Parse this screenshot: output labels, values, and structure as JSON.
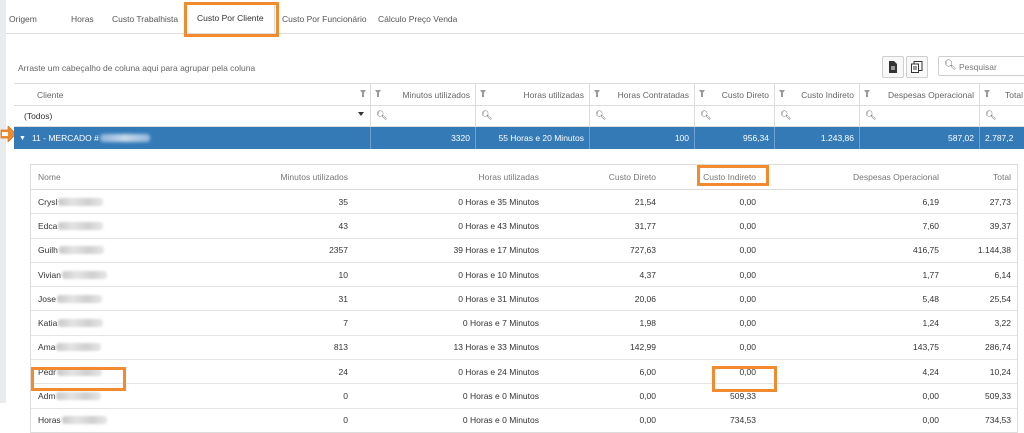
{
  "tabs": [
    {
      "label": "Origem"
    },
    {
      "label": "Horas"
    },
    {
      "label": "Custo Trabalhista"
    },
    {
      "label": "Custo Por Cliente",
      "active": true
    },
    {
      "label": "Custo Por Funcionário"
    },
    {
      "label": "Cálculo Preço Venda"
    }
  ],
  "hint": "Arraste um cabeçalho de coluna aqui para agrupar pela coluna",
  "toolbar": {
    "export_icon": "file-export-icon",
    "columns_icon": "column-chooser-icon",
    "search_placeholder": "Pesquisar"
  },
  "main_grid": {
    "columns": [
      "Cliente",
      "Minutos utilizados",
      "Horas utilizadas",
      "Horas Contratadas",
      "Custo Direto",
      "Custo Indireto",
      "Despesas Operacional",
      "Total"
    ],
    "filter_select": "(Todos)",
    "group_row": {
      "cliente": "11 - MERCADO #",
      "minutos": "3320",
      "horas": "55 Horas e 20 Minutos",
      "contratadas": "100",
      "custo_direto": "956,34",
      "custo_indireto": "1.243,86",
      "despesas": "587,02",
      "total": "2.787,2"
    }
  },
  "detail_grid": {
    "columns": [
      "Nome",
      "Minutos utilizados",
      "Horas utilizadas",
      "Custo Direto",
      "Custo Indireto",
      "Despesas Operacional",
      "Total"
    ],
    "rows": [
      {
        "nome": "Crysl",
        "minutos": "35",
        "horas": "0 Horas e 35 Minutos",
        "custo_direto": "21,54",
        "custo_indireto": "0,00",
        "despesas": "6,19",
        "total": "27,73"
      },
      {
        "nome": "Edca",
        "minutos": "43",
        "horas": "0 Horas e 43 Minutos",
        "custo_direto": "31,77",
        "custo_indireto": "0,00",
        "despesas": "7,60",
        "total": "39,37"
      },
      {
        "nome": "Guilh",
        "minutos": "2357",
        "horas": "39 Horas e 17 Minutos",
        "custo_direto": "727,63",
        "custo_indireto": "0,00",
        "despesas": "416,75",
        "total": "1.144,38"
      },
      {
        "nome": "Vivian",
        "minutos": "10",
        "horas": "0 Horas e 10 Minutos",
        "custo_direto": "4,37",
        "custo_indireto": "0,00",
        "despesas": "1,77",
        "total": "6,14"
      },
      {
        "nome": "Jose",
        "minutos": "31",
        "horas": "0 Horas e 31 Minutos",
        "custo_direto": "20,06",
        "custo_indireto": "0,00",
        "despesas": "5,48",
        "total": "25,54"
      },
      {
        "nome": "Katia",
        "minutos": "7",
        "horas": "0 Horas e 7 Minutos",
        "custo_direto": "1,98",
        "custo_indireto": "0,00",
        "despesas": "1,24",
        "total": "3,22"
      },
      {
        "nome": "Ama",
        "minutos": "813",
        "horas": "13 Horas e 33 Minutos",
        "custo_direto": "142,99",
        "custo_indireto": "0,00",
        "despesas": "143,75",
        "total": "286,74"
      },
      {
        "nome": "Pedr",
        "minutos": "24",
        "horas": "0 Horas e 24 Minutos",
        "custo_direto": "6,00",
        "custo_indireto": "0,00",
        "despesas": "4,24",
        "total": "10,24"
      },
      {
        "nome": "Adm",
        "minutos": "0",
        "horas": "0 Horas e 0 Minutos",
        "custo_direto": "0,00",
        "custo_indireto": "509,33",
        "despesas": "0,00",
        "total": "509,33"
      },
      {
        "nome": "Horas",
        "minutos": "0",
        "horas": "0 Horas e 0 Minutos",
        "custo_direto": "0,00",
        "custo_indireto": "734,53",
        "despesas": "0,00",
        "total": "734,53"
      }
    ]
  },
  "colors": {
    "selected_row": "#337ab7",
    "highlight": "#f28a30"
  }
}
